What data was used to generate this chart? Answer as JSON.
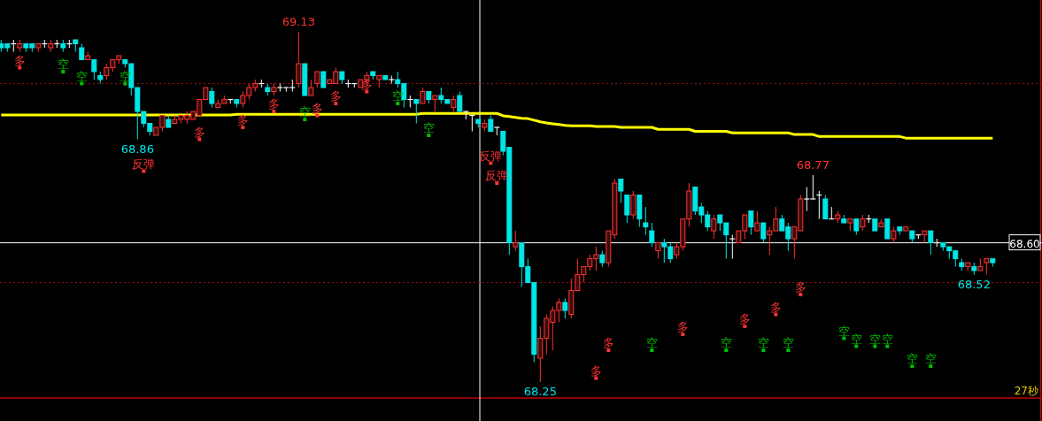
{
  "chart_data": {
    "type": "candlestick",
    "categories": [
      null,
      null,
      null,
      null,
      null,
      null,
      null,
      null,
      null,
      null,
      null,
      null,
      null,
      null,
      null,
      null,
      null,
      null,
      null,
      null,
      null,
      null,
      null,
      null,
      null,
      null,
      null,
      null,
      null,
      null,
      null,
      null,
      null,
      null,
      null,
      null,
      null,
      null,
      null,
      null,
      null,
      null,
      null,
      null,
      null,
      null,
      null,
      null,
      null,
      null,
      null,
      null,
      null,
      null,
      null,
      null,
      null,
      null,
      null,
      null,
      null,
      null,
      null,
      null,
      null,
      null,
      null,
      null,
      null,
      null,
      null,
      null,
      null,
      null,
      null,
      null,
      null,
      null,
      null,
      null,
      null,
      null,
      null,
      null,
      null,
      null,
      null,
      null,
      null,
      null,
      null,
      null,
      null,
      null,
      null,
      null,
      null,
      null,
      null,
      null,
      null,
      null,
      null,
      null,
      null,
      null,
      null,
      null,
      null,
      null,
      null,
      null,
      null,
      null,
      null,
      null,
      null,
      null,
      null,
      null,
      null,
      null,
      null,
      null,
      null,
      null,
      null,
      null,
      null,
      null,
      null,
      null,
      null,
      null,
      null,
      null,
      null,
      null,
      null,
      null,
      null,
      null,
      null,
      null,
      null,
      null,
      null,
      null,
      null,
      null,
      null,
      null,
      null,
      null,
      null,
      null,
      null,
      null,
      null,
      null,
      null
    ],
    "ohlc": [
      [
        69.1,
        69.11,
        69.08,
        69.09
      ],
      [
        69.1,
        69.1,
        69.08,
        69.09
      ],
      [
        69.1,
        69.11,
        69.08,
        69.1
      ],
      [
        69.09,
        69.11,
        69.08,
        69.1
      ],
      [
        69.1,
        69.1,
        69.08,
        69.09
      ],
      [
        69.1,
        69.1,
        69.08,
        69.09
      ],
      [
        69.09,
        69.1,
        69.08,
        69.1
      ],
      [
        69.1,
        69.11,
        69.09,
        69.1
      ],
      [
        69.09,
        69.11,
        69.08,
        69.1
      ],
      [
        69.1,
        69.11,
        69.09,
        69.1
      ],
      [
        69.1,
        69.11,
        69.08,
        69.09
      ],
      [
        69.1,
        69.11,
        69.09,
        69.1
      ],
      [
        69.11,
        69.11,
        69.08,
        69.1
      ],
      [
        69.09,
        69.1,
        69.06,
        69.06
      ],
      [
        69.06,
        69.08,
        69.06,
        69.07
      ],
      [
        69.06,
        69.06,
        69.01,
        69.03
      ],
      [
        69.02,
        69.03,
        69.0,
        69.01
      ],
      [
        69.02,
        69.05,
        69.01,
        69.04
      ],
      [
        69.04,
        69.06,
        69.03,
        69.06
      ],
      [
        69.06,
        69.07,
        69.05,
        69.07
      ],
      [
        69.06,
        69.06,
        69.04,
        69.05
      ],
      [
        69.05,
        69.05,
        68.97,
        68.99
      ],
      [
        68.99,
        68.99,
        68.86,
        68.93
      ],
      [
        68.93,
        68.93,
        68.89,
        68.9
      ],
      [
        68.9,
        68.9,
        68.87,
        68.88
      ],
      [
        68.87,
        68.89,
        68.87,
        68.89
      ],
      [
        68.89,
        68.92,
        68.88,
        68.92
      ],
      [
        68.91,
        68.92,
        68.89,
        68.89
      ],
      [
        68.9,
        68.92,
        68.9,
        68.91
      ],
      [
        68.91,
        68.92,
        68.9,
        68.92
      ],
      [
        68.91,
        68.93,
        68.9,
        68.92
      ],
      [
        68.91,
        68.93,
        68.91,
        68.93
      ],
      [
        68.92,
        68.96,
        68.92,
        68.96
      ],
      [
        68.96,
        68.99,
        68.96,
        68.99
      ],
      [
        68.98,
        68.99,
        68.94,
        68.95
      ],
      [
        68.94,
        68.96,
        68.94,
        68.95
      ],
      [
        68.95,
        68.97,
        68.95,
        68.96
      ],
      [
        68.96,
        68.96,
        68.95,
        68.96
      ],
      [
        68.96,
        68.96,
        68.94,
        68.95
      ],
      [
        68.95,
        68.98,
        68.94,
        68.97
      ],
      [
        68.97,
        69.0,
        68.96,
        68.99
      ],
      [
        68.99,
        69.01,
        68.98,
        69.0
      ],
      [
        69.0,
        69.01,
        68.99,
        69.0
      ],
      [
        68.99,
        69.0,
        68.97,
        68.98
      ],
      [
        68.98,
        69.0,
        68.97,
        68.99
      ],
      [
        68.99,
        69.0,
        68.98,
        68.99
      ],
      [
        68.99,
        68.99,
        68.98,
        68.99
      ],
      [
        68.99,
        69.01,
        68.98,
        68.99
      ],
      [
        69.0,
        69.13,
        68.99,
        69.05
      ],
      [
        69.05,
        69.05,
        68.97,
        68.97
      ],
      [
        68.97,
        69.01,
        68.97,
        68.99
      ],
      [
        69.0,
        69.03,
        68.99,
        69.03
      ],
      [
        69.03,
        69.03,
        68.99,
        68.99
      ],
      [
        69.0,
        69.01,
        69.0,
        69.01
      ],
      [
        69.0,
        69.04,
        69.0,
        69.03
      ],
      [
        69.03,
        69.03,
        69.0,
        69.01
      ],
      [
        69.0,
        69.01,
        68.99,
        69.0
      ],
      [
        69.0,
        69.0,
        68.99,
        69.0
      ],
      [
        68.99,
        69.01,
        68.99,
        69.01
      ],
      [
        69.01,
        69.03,
        69.0,
        69.02
      ],
      [
        69.03,
        69.03,
        69.01,
        69.02
      ],
      [
        69.01,
        69.02,
        68.99,
        69.02
      ],
      [
        69.02,
        69.02,
        69.01,
        69.01
      ],
      [
        69.01,
        69.02,
        69.0,
        69.01
      ],
      [
        69.01,
        69.03,
        68.99,
        69.0
      ],
      [
        69.0,
        69.0,
        68.94,
        68.96
      ],
      [
        68.96,
        68.97,
        68.94,
        68.96
      ],
      [
        68.96,
        68.96,
        68.9,
        68.95
      ],
      [
        68.95,
        68.99,
        68.95,
        68.98
      ],
      [
        68.98,
        68.98,
        68.95,
        68.96
      ],
      [
        68.96,
        68.97,
        68.93,
        68.97
      ],
      [
        68.97,
        68.99,
        68.95,
        68.96
      ],
      [
        68.96,
        68.96,
        68.95,
        68.95
      ],
      [
        68.94,
        68.97,
        68.93,
        68.96
      ],
      [
        68.97,
        68.98,
        68.93,
        68.93
      ],
      [
        68.93,
        68.93,
        68.91,
        68.93
      ],
      [
        68.92,
        68.92,
        68.88,
        68.92
      ],
      [
        68.91,
        68.91,
        68.89,
        68.9
      ],
      [
        68.89,
        68.91,
        68.88,
        68.9
      ],
      [
        68.91,
        68.92,
        68.88,
        68.88
      ],
      [
        68.89,
        68.89,
        68.87,
        68.89
      ],
      [
        68.88,
        68.88,
        68.82,
        68.83
      ],
      [
        68.84,
        68.84,
        68.57,
        68.6
      ],
      [
        68.59,
        68.63,
        68.58,
        68.6
      ],
      [
        68.6,
        68.6,
        68.49,
        68.54
      ],
      [
        68.54,
        68.56,
        68.5,
        68.5
      ],
      [
        68.5,
        68.5,
        68.3,
        68.32
      ],
      [
        68.31,
        68.39,
        68.25,
        68.36
      ],
      [
        68.36,
        68.42,
        68.32,
        68.41
      ],
      [
        68.4,
        68.44,
        68.33,
        68.43
      ],
      [
        68.43,
        68.46,
        68.4,
        68.45
      ],
      [
        68.45,
        68.46,
        68.41,
        68.43
      ],
      [
        68.42,
        68.51,
        68.41,
        68.48
      ],
      [
        68.48,
        68.56,
        68.48,
        68.52
      ],
      [
        68.52,
        68.54,
        68.5,
        68.54
      ],
      [
        68.54,
        68.57,
        68.53,
        68.56
      ],
      [
        68.56,
        68.59,
        68.53,
        68.57
      ],
      [
        68.57,
        68.58,
        68.54,
        68.55
      ],
      [
        68.55,
        68.63,
        68.54,
        68.63
      ],
      [
        68.62,
        68.76,
        68.61,
        68.75
      ],
      [
        68.76,
        68.76,
        68.7,
        68.73
      ],
      [
        68.72,
        68.72,
        68.65,
        68.67
      ],
      [
        68.67,
        68.73,
        68.66,
        68.72
      ],
      [
        68.72,
        68.72,
        68.64,
        68.66
      ],
      [
        68.65,
        68.69,
        68.62,
        68.64
      ],
      [
        68.63,
        68.65,
        68.59,
        68.6
      ],
      [
        68.58,
        68.6,
        68.56,
        68.6
      ],
      [
        68.6,
        68.61,
        68.55,
        68.59
      ],
      [
        68.59,
        68.6,
        68.55,
        68.56
      ],
      [
        68.57,
        68.6,
        68.56,
        68.59
      ],
      [
        68.59,
        68.66,
        68.58,
        68.66
      ],
      [
        68.66,
        68.75,
        68.64,
        68.73
      ],
      [
        68.74,
        68.74,
        68.67,
        68.68
      ],
      [
        68.69,
        68.7,
        68.65,
        68.67
      ],
      [
        68.67,
        68.68,
        68.63,
        68.64
      ],
      [
        68.63,
        68.67,
        68.61,
        68.66
      ],
      [
        68.67,
        68.67,
        68.63,
        68.65
      ],
      [
        68.65,
        68.65,
        68.56,
        68.62
      ],
      [
        68.61,
        68.62,
        68.56,
        68.61
      ],
      [
        68.6,
        68.63,
        68.6,
        68.63
      ],
      [
        68.63,
        68.67,
        68.61,
        68.67
      ],
      [
        68.68,
        68.68,
        68.62,
        68.64
      ],
      [
        68.63,
        68.68,
        68.63,
        68.65
      ],
      [
        68.65,
        68.65,
        68.6,
        68.61
      ],
      [
        68.62,
        68.64,
        68.57,
        68.63
      ],
      [
        68.63,
        68.69,
        68.63,
        68.66
      ],
      [
        68.66,
        68.67,
        68.63,
        68.63
      ],
      [
        68.64,
        68.65,
        68.58,
        68.61
      ],
      [
        68.61,
        68.64,
        68.56,
        68.64
      ],
      [
        68.63,
        68.72,
        68.63,
        68.71
      ],
      [
        68.71,
        68.74,
        68.68,
        68.71
      ],
      [
        68.71,
        68.77,
        68.71,
        68.71
      ],
      [
        68.72,
        68.73,
        68.66,
        68.72
      ],
      [
        68.71,
        68.72,
        68.66,
        68.66
      ],
      [
        68.66,
        68.69,
        68.66,
        68.66
      ],
      [
        68.66,
        68.68,
        68.65,
        68.67
      ],
      [
        68.66,
        68.67,
        68.65,
        68.65
      ],
      [
        68.65,
        68.66,
        68.63,
        68.66
      ],
      [
        68.66,
        68.66,
        68.62,
        68.63
      ],
      [
        68.64,
        68.67,
        68.63,
        68.66
      ],
      [
        68.66,
        68.67,
        68.65,
        68.66
      ],
      [
        68.66,
        68.66,
        68.63,
        68.63
      ],
      [
        68.64,
        68.66,
        68.64,
        68.65
      ],
      [
        68.66,
        68.66,
        68.61,
        68.61
      ],
      [
        68.61,
        68.64,
        68.6,
        68.63
      ],
      [
        68.64,
        68.64,
        68.62,
        68.63
      ],
      [
        68.63,
        68.64,
        68.63,
        68.64
      ],
      [
        68.63,
        68.63,
        68.6,
        68.61
      ],
      [
        68.62,
        68.62,
        68.61,
        68.62
      ],
      [
        68.62,
        68.63,
        68.6,
        68.63
      ],
      [
        68.63,
        68.63,
        68.57,
        68.6
      ],
      [
        68.6,
        68.61,
        68.59,
        68.6
      ],
      [
        68.6,
        68.6,
        68.58,
        68.59
      ],
      [
        68.59,
        68.59,
        68.56,
        68.58
      ],
      [
        68.58,
        68.58,
        68.54,
        68.56
      ],
      [
        68.55,
        68.56,
        68.53,
        68.54
      ],
      [
        68.54,
        68.55,
        68.53,
        68.55
      ],
      [
        68.54,
        68.55,
        68.52,
        68.53
      ],
      [
        68.53,
        68.56,
        68.53,
        68.54
      ],
      [
        68.55,
        68.56,
        68.52,
        68.56
      ],
      [
        68.56,
        68.56,
        68.54,
        68.55
      ]
    ],
    "colors": [
      "#00e5e5",
      "#00e5e5",
      "#ffffff",
      "#ff3232",
      "#00e5e5",
      "#00e5e5",
      "#ff3232",
      "#ffffff",
      "#ff3232",
      "#ffffff",
      "#00e5e5",
      "#ffffff",
      "#00e5e5",
      "#00e5e5",
      "#ff3232",
      "#00e5e5",
      "#00e5e5",
      "#ff3232",
      "#ff3232",
      "#ff3232",
      "#00e5e5",
      "#00e5e5",
      "#00e5e5",
      "#00e5e5",
      "#00e5e5",
      "#ff3232",
      "#ff3232",
      "#00e5e5",
      "#ff3232",
      "#ff3232",
      "#ff3232",
      "#ff3232",
      "#ff3232",
      "#ff3232",
      "#00e5e5",
      "#ff3232",
      "#ff3232",
      "#ffffff",
      "#00e5e5",
      "#ff3232",
      "#ff3232",
      "#ff3232",
      "#ffffff",
      "#00e5e5",
      "#ff3232",
      "#ffffff",
      "#ffffff",
      "#ffffff",
      "#ff3232",
      "#00e5e5",
      "#ff3232",
      "#ff3232",
      "#00e5e5",
      "#ff3232",
      "#ff3232",
      "#00e5e5",
      "#ffffff",
      "#ffffff",
      "#ff3232",
      "#ff3232",
      "#00e5e5",
      "#ff3232",
      "#00e5e5",
      "#ffffff",
      "#00e5e5",
      "#00e5e5",
      "#ffffff",
      "#00e5e5",
      "#ff3232",
      "#00e5e5",
      "#ff3232",
      "#00e5e5",
      "#00e5e5",
      "#ff3232",
      "#00e5e5",
      "#ffffff",
      "#ffffff",
      "#00e5e5",
      "#ff3232",
      "#00e5e5",
      "#ffffff",
      "#00e5e5",
      "#00e5e5",
      "#ff3232",
      "#00e5e5",
      "#00e5e5",
      "#00e5e5",
      "#ff3232",
      "#ff3232",
      "#ff3232",
      "#ff3232",
      "#00e5e5",
      "#ff3232",
      "#ff3232",
      "#ff3232",
      "#ff3232",
      "#ff3232",
      "#00e5e5",
      "#ff3232",
      "#ff3232",
      "#00e5e5",
      "#00e5e5",
      "#ff3232",
      "#00e5e5",
      "#00e5e5",
      "#00e5e5",
      "#ff3232",
      "#00e5e5",
      "#00e5e5",
      "#ff3232",
      "#ff3232",
      "#ff3232",
      "#00e5e5",
      "#00e5e5",
      "#00e5e5",
      "#ff3232",
      "#00e5e5",
      "#00e5e5",
      "#ffffff",
      "#ff3232",
      "#ff3232",
      "#00e5e5",
      "#ff3232",
      "#00e5e5",
      "#ff3232",
      "#ff3232",
      "#00e5e5",
      "#00e5e5",
      "#ff3232",
      "#ff3232",
      "#ffffff",
      "#ffffff",
      "#ffffff",
      "#00e5e5",
      "#ffffff",
      "#ff3232",
      "#00e5e5",
      "#ff3232",
      "#00e5e5",
      "#ff3232",
      "#ffffff",
      "#00e5e5",
      "#ff3232",
      "#00e5e5",
      "#ff3232",
      "#00e5e5",
      "#ff3232",
      "#00e5e5",
      "#ffffff",
      "#ff3232",
      "#00e5e5",
      "#ffffff",
      "#00e5e5",
      "#00e5e5",
      "#00e5e5",
      "#00e5e5",
      "#ff3232",
      "#00e5e5",
      "#ff3232",
      "#ff3232",
      "#00e5e5"
    ],
    "series": [
      {
        "type": "line",
        "color": "#ffff00",
        "values": [
          68.921,
          68.921,
          68.921,
          68.921,
          68.921,
          68.921,
          68.921,
          68.921,
          68.921,
          68.921,
          68.921,
          68.921,
          68.921,
          68.921,
          68.921,
          68.921,
          68.921,
          68.921,
          68.921,
          68.921,
          68.921,
          68.921,
          68.921,
          68.921,
          68.921,
          68.921,
          68.921,
          68.921,
          68.921,
          68.921,
          68.921,
          68.921,
          68.921,
          68.921,
          68.921,
          68.921,
          68.921,
          68.921,
          68.923,
          68.923,
          68.923,
          68.923,
          68.923,
          68.923,
          68.923,
          68.923,
          68.923,
          68.923,
          68.923,
          68.923,
          68.923,
          68.923,
          68.923,
          68.923,
          68.923,
          68.923,
          68.923,
          68.923,
          68.923,
          68.923,
          68.923,
          68.923,
          68.923,
          68.923,
          68.923,
          68.923,
          68.923,
          68.923,
          68.925,
          68.925,
          68.925,
          68.925,
          68.925,
          68.925,
          68.925,
          68.925,
          68.925,
          68.925,
          68.925,
          68.925,
          68.925,
          68.919,
          68.917,
          68.915,
          68.913,
          68.912,
          68.908,
          68.904,
          68.901,
          68.899,
          68.897,
          68.895,
          68.894,
          68.894,
          68.894,
          68.894,
          68.892,
          68.892,
          68.892,
          68.892,
          68.89,
          68.89,
          68.89,
          68.89,
          68.89,
          68.89,
          68.885,
          68.885,
          68.885,
          68.885,
          68.885,
          68.885,
          68.88,
          68.88,
          68.88,
          68.88,
          68.88,
          68.88,
          68.876,
          68.876,
          68.876,
          68.876,
          68.876,
          68.876,
          68.876,
          68.876,
          68.876,
          68.876,
          68.872,
          68.872,
          68.872,
          68.872,
          68.867,
          68.867,
          68.867,
          68.867,
          68.867,
          68.867,
          68.867,
          68.867,
          68.867,
          68.867,
          68.867,
          68.867,
          68.867,
          68.867,
          68.863,
          68.863,
          68.863,
          68.863,
          68.863,
          68.863,
          68.863,
          68.863,
          68.863,
          68.863,
          68.863,
          68.863,
          68.863,
          68.863,
          68.863
        ]
      },
      {
        "type": "scatter",
        "marker": "square",
        "color": "#ff3232",
        "values": [
          null,
          null,
          null,
          69.04,
          null,
          null,
          null,
          null,
          null,
          null,
          null,
          null,
          null,
          null,
          null,
          null,
          null,
          null,
          null,
          null,
          null,
          null,
          null,
          null,
          null,
          null,
          null,
          null,
          null,
          null,
          null,
          null,
          68.86,
          null,
          null,
          null,
          null,
          null,
          null,
          68.89,
          null,
          null,
          null,
          null,
          68.93,
          null,
          null,
          null,
          null,
          null,
          null,
          68.92,
          null,
          null,
          68.95,
          null,
          null,
          null,
          null,
          68.98,
          null,
          null,
          null,
          null,
          null,
          null,
          null,
          null,
          null,
          null,
          null,
          null,
          null,
          null,
          null,
          null,
          null,
          null,
          null,
          null,
          null,
          null,
          null,
          null,
          null,
          null,
          null,
          null,
          null,
          null,
          null,
          null,
          null,
          null,
          null,
          null,
          68.26,
          null,
          68.33,
          null,
          null,
          null,
          null,
          null,
          null,
          null,
          null,
          null,
          null,
          null,
          68.37,
          null,
          null,
          null,
          null,
          null,
          null,
          null,
          null,
          null,
          68.39,
          null,
          null,
          null,
          null,
          68.42,
          null,
          null,
          null,
          68.47,
          null,
          null,
          null,
          null,
          null,
          null,
          null,
          null,
          null,
          null,
          null,
          null,
          null,
          null,
          null,
          null,
          null,
          null,
          null,
          null,
          null,
          null,
          null,
          null,
          null,
          null,
          null,
          null,
          null,
          null,
          null
        ],
        "value_labels": [
          null,
          null,
          null,
          "多",
          null,
          null,
          null,
          null,
          null,
          null,
          null,
          null,
          null,
          null,
          null,
          null,
          null,
          null,
          null,
          null,
          null,
          null,
          null,
          null,
          null,
          null,
          null,
          null,
          null,
          null,
          null,
          null,
          "多",
          null,
          null,
          null,
          null,
          null,
          null,
          "多",
          null,
          null,
          null,
          null,
          "多",
          null,
          null,
          null,
          null,
          null,
          null,
          "多",
          null,
          null,
          "多",
          null,
          null,
          null,
          null,
          "多",
          null,
          null,
          null,
          null,
          null,
          null,
          null,
          null,
          null,
          null,
          null,
          null,
          null,
          null,
          null,
          null,
          null,
          null,
          null,
          null,
          null,
          null,
          null,
          null,
          null,
          null,
          null,
          null,
          null,
          null,
          null,
          null,
          null,
          null,
          null,
          null,
          "多",
          null,
          "多",
          null,
          null,
          null,
          null,
          null,
          null,
          null,
          null,
          null,
          null,
          null,
          "多",
          null,
          null,
          null,
          null,
          null,
          null,
          null,
          null,
          null,
          "多",
          null,
          null,
          null,
          null,
          "多",
          null,
          null,
          null,
          "多",
          null,
          null,
          null,
          null,
          null,
          null,
          null,
          null,
          null,
          null,
          null,
          null,
          null,
          null,
          null,
          null,
          null,
          null,
          null,
          null,
          null,
          null,
          null,
          null,
          null,
          null,
          null,
          null,
          null,
          null,
          null
        ]
      },
      {
        "type": "scatter",
        "marker": "square",
        "color": "#00c000",
        "values": [
          null,
          null,
          null,
          null,
          null,
          null,
          null,
          null,
          null,
          null,
          69.03,
          null,
          null,
          69.0,
          null,
          null,
          null,
          null,
          null,
          null,
          69.0,
          null,
          null,
          null,
          null,
          null,
          null,
          null,
          null,
          null,
          null,
          null,
          null,
          null,
          null,
          null,
          null,
          null,
          null,
          null,
          null,
          null,
          null,
          null,
          null,
          null,
          null,
          null,
          null,
          68.91,
          null,
          null,
          null,
          null,
          null,
          null,
          null,
          null,
          null,
          null,
          null,
          null,
          null,
          null,
          68.95,
          null,
          null,
          null,
          null,
          68.87,
          null,
          null,
          null,
          null,
          null,
          null,
          null,
          null,
          null,
          null,
          null,
          null,
          null,
          null,
          null,
          null,
          null,
          null,
          null,
          null,
          null,
          null,
          null,
          null,
          null,
          null,
          null,
          null,
          null,
          null,
          null,
          null,
          null,
          null,
          null,
          68.33,
          null,
          null,
          null,
          null,
          null,
          null,
          null,
          null,
          null,
          null,
          null,
          68.33,
          null,
          null,
          null,
          null,
          null,
          68.33,
          null,
          null,
          null,
          68.33,
          null,
          null,
          null,
          null,
          null,
          null,
          null,
          null,
          68.36,
          null,
          68.34,
          null,
          null,
          68.34,
          null,
          68.34,
          null,
          null,
          null,
          68.29,
          null,
          null,
          68.29,
          null,
          null,
          null,
          null,
          null,
          null,
          null,
          null,
          null,
          null
        ],
        "value_labels": [
          null,
          null,
          null,
          null,
          null,
          null,
          null,
          null,
          null,
          null,
          "空",
          null,
          null,
          "空",
          null,
          null,
          null,
          null,
          null,
          null,
          "空",
          null,
          null,
          null,
          null,
          null,
          null,
          null,
          null,
          null,
          null,
          null,
          null,
          null,
          null,
          null,
          null,
          null,
          null,
          null,
          null,
          null,
          null,
          null,
          null,
          null,
          null,
          null,
          null,
          "空",
          null,
          null,
          null,
          null,
          null,
          null,
          null,
          null,
          null,
          null,
          null,
          null,
          null,
          null,
          "空",
          null,
          null,
          null,
          null,
          "空",
          null,
          null,
          null,
          null,
          null,
          null,
          null,
          null,
          null,
          null,
          null,
          null,
          null,
          null,
          null,
          null,
          null,
          null,
          null,
          null,
          null,
          null,
          null,
          null,
          null,
          null,
          null,
          null,
          null,
          null,
          null,
          null,
          null,
          null,
          null,
          "空",
          null,
          null,
          null,
          null,
          null,
          null,
          null,
          null,
          null,
          null,
          null,
          "空",
          null,
          null,
          null,
          null,
          null,
          "空",
          null,
          null,
          null,
          "空",
          null,
          null,
          null,
          null,
          null,
          null,
          null,
          null,
          "空",
          null,
          "空",
          null,
          null,
          "空",
          null,
          "空",
          null,
          null,
          null,
          "空",
          null,
          null,
          "空",
          null,
          null,
          null,
          null,
          null,
          null,
          null,
          null,
          null,
          null
        ]
      },
      {
        "type": "scatter",
        "marker": "square",
        "color": "#ff3232",
        "values": [
          null,
          null,
          null,
          null,
          null,
          null,
          null,
          null,
          null,
          null,
          null,
          null,
          null,
          null,
          null,
          null,
          null,
          null,
          null,
          null,
          null,
          null,
          null,
          68.78,
          null,
          null,
          null,
          null,
          null,
          null,
          null,
          null,
          null,
          null,
          null,
          null,
          null,
          null,
          null,
          null,
          null,
          null,
          null,
          null,
          null,
          null,
          null,
          null,
          null,
          null,
          null,
          null,
          null,
          null,
          null,
          null,
          null,
          null,
          null,
          null,
          null,
          null,
          null,
          null,
          null,
          null,
          null,
          null,
          null,
          null,
          null,
          null,
          null,
          null,
          null,
          null,
          null,
          null,
          null,
          68.8,
          68.75,
          null,
          null,
          null,
          null,
          null,
          null,
          null,
          null,
          null,
          null,
          null,
          null,
          null,
          null,
          null,
          null,
          null,
          null,
          null,
          null,
          null,
          null,
          null,
          null,
          null,
          null,
          null,
          null,
          null,
          null,
          null,
          null,
          null,
          null,
          null,
          null,
          null,
          null,
          null,
          null,
          null,
          null,
          null,
          null,
          null,
          null,
          null,
          null,
          null,
          null,
          null,
          null,
          null,
          null,
          null,
          null,
          null,
          null,
          null,
          null,
          null,
          null,
          null,
          null,
          null,
          null,
          null,
          null,
          null,
          null,
          null,
          null,
          null,
          null,
          null,
          null,
          null,
          null,
          null,
          null
        ],
        "value_labels": [
          null,
          null,
          null,
          null,
          null,
          null,
          null,
          null,
          null,
          null,
          null,
          null,
          null,
          null,
          null,
          null,
          null,
          null,
          null,
          null,
          null,
          null,
          null,
          "反弹",
          null,
          null,
          null,
          null,
          null,
          null,
          null,
          null,
          null,
          null,
          null,
          null,
          null,
          null,
          null,
          null,
          null,
          null,
          null,
          null,
          null,
          null,
          null,
          null,
          null,
          null,
          null,
          null,
          null,
          null,
          null,
          null,
          null,
          null,
          null,
          null,
          null,
          null,
          null,
          null,
          null,
          null,
          null,
          null,
          null,
          null,
          null,
          null,
          null,
          null,
          null,
          null,
          null,
          null,
          null,
          "反弹",
          "反弹",
          null,
          null,
          null,
          null,
          null,
          null,
          null,
          null,
          null,
          null,
          null,
          null,
          null,
          null,
          null,
          null,
          null,
          null,
          null,
          null,
          null,
          null,
          null,
          null,
          null,
          null,
          null,
          null,
          null,
          null,
          null,
          null,
          null,
          null,
          null,
          null,
          null,
          null,
          null,
          null,
          null,
          null,
          null,
          null,
          null,
          null,
          null,
          null,
          null,
          null,
          null,
          null,
          null,
          null,
          null,
          null,
          null,
          null,
          null,
          null,
          null,
          null,
          null,
          null,
          null,
          null,
          null,
          null,
          null,
          null,
          null,
          null,
          null,
          null,
          null,
          null,
          null,
          null,
          null,
          null
        ]
      }
    ],
    "ylim": [
      68.21,
      69.21
    ],
    "ref_lines": [
      {
        "axis": "y",
        "value": 69.0,
        "color": "#a01010",
        "line_style": "dotted"
      },
      {
        "axis": "y",
        "value": 68.5,
        "color": "#a01010",
        "line_style": "dotted"
      },
      {
        "axis": "y",
        "value": 68.6,
        "label": "68.60",
        "color": "#ffffff",
        "line_style": "solid"
      }
    ],
    "annotations": [
      {
        "text": "69.13",
        "y": 69.13
      },
      {
        "text": "68.86",
        "y": 68.86
      },
      {
        "text": "68.25",
        "y": 68.25
      },
      {
        "text": "68.77",
        "y": 68.77
      },
      {
        "text": "68.52",
        "y": 68.52
      },
      "27秒"
    ]
  }
}
